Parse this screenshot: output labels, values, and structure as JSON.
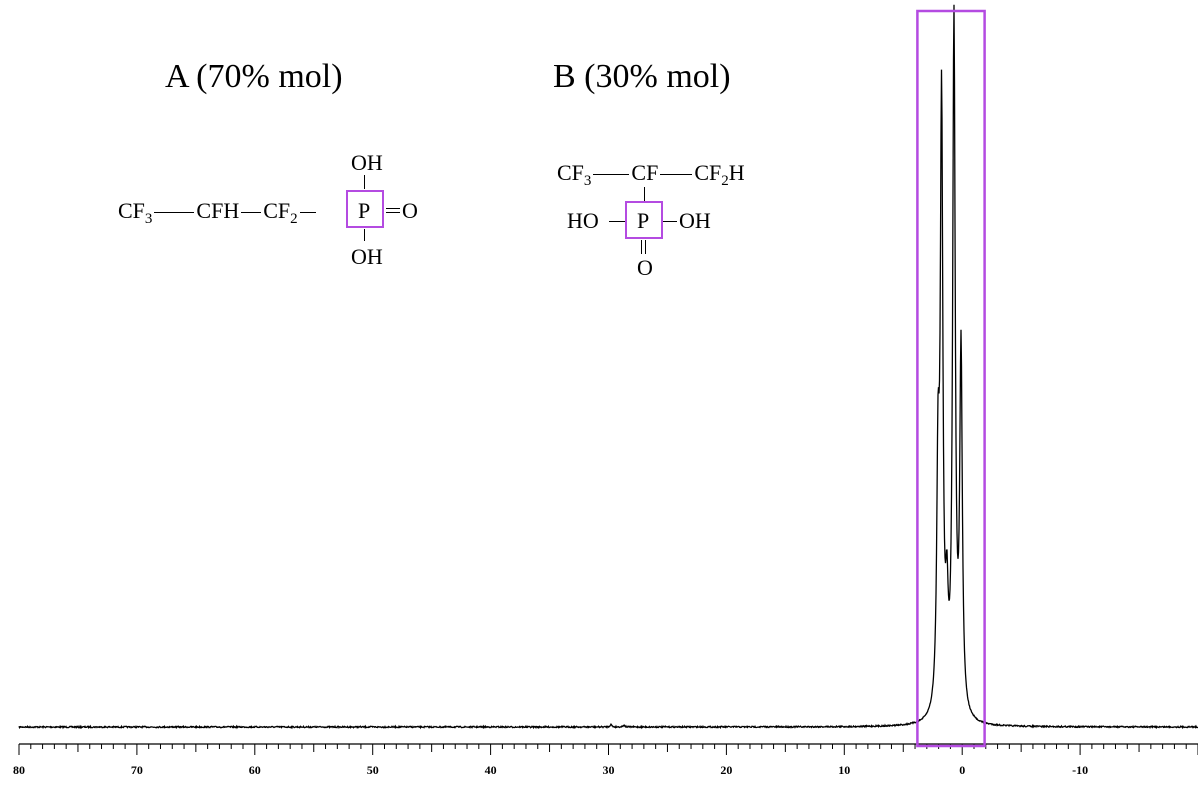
{
  "colors": {
    "highlight": "#b44be1",
    "trace": "#000000"
  },
  "species_a": {
    "title": "A (70% mol)",
    "chain": {
      "cf3": "CF",
      "cf3_sub": "3",
      "cfh": "CFH",
      "cf2": "CF",
      "cf2_sub": "2"
    },
    "p": "P",
    "oh_top": "OH",
    "oh_bottom": "OH",
    "o_side": "O"
  },
  "species_b": {
    "title": "B (30% mol)",
    "chain": {
      "cf3": "CF",
      "cf3_sub": "3",
      "cf": "CF",
      "cf2h": "CF",
      "cf2h_sub": "2",
      "cf2h_tail": "H"
    },
    "p": "P",
    "ho_left": "HO",
    "oh_right": "OH",
    "o_bottom": "O"
  },
  "chart_data": {
    "type": "line",
    "xlabel": "",
    "ylabel": "",
    "x_range": [
      80,
      -20
    ],
    "x_axis_reversed": true,
    "x_tick_labels": [
      "80",
      "70",
      "60",
      "50",
      "40",
      "30",
      "20",
      "10",
      "0",
      "-10"
    ],
    "x_tick_values": [
      80,
      70,
      60,
      50,
      40,
      30,
      20,
      10,
      0,
      -10
    ],
    "minor_tick_step": 1,
    "y_range": [
      0,
      1.0
    ],
    "baseline": 0.0,
    "highlight_region": [
      3.8,
      -1.9
    ],
    "series": [
      {
        "peaks": [
          {
            "x": 2.05,
            "y": 0.33
          },
          {
            "x": 1.75,
            "y": 0.87
          },
          {
            "x": 1.3,
            "y": 0.13
          },
          {
            "x": 0.7,
            "y": 1.0
          },
          {
            "x": 0.1,
            "y": 0.52
          }
        ],
        "minor_features": [
          {
            "x": 29.8,
            "y": 0.004
          },
          {
            "x": 28.7,
            "y": 0.003
          }
        ]
      }
    ]
  }
}
